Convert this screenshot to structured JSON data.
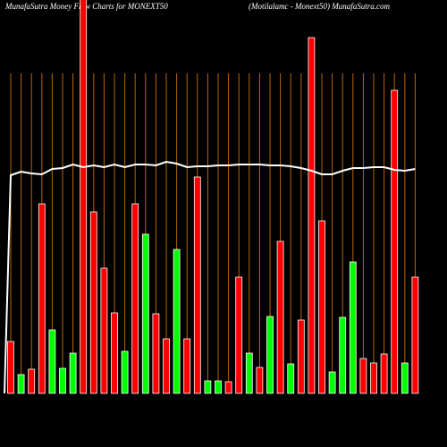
{
  "chart_data": {
    "type": "bar",
    "title": "MunafaSutra  Money Flow  Charts for MONEXT50",
    "subtitle": "(Motilalamc -  Monext50) MunafaSutra.com",
    "series": [
      {
        "name": "money-flow",
        "colors": [
          "red",
          "green",
          "red",
          "red",
          "green",
          "green",
          "green",
          "red",
          "red",
          "red",
          "red",
          "green",
          "red",
          "green",
          "red",
          "red",
          "green",
          "red",
          "red",
          "green",
          "green",
          "red",
          "red",
          "green",
          "red",
          "green",
          "red",
          "green",
          "red",
          "red",
          "red",
          "green",
          "green",
          "green",
          "red",
          "red",
          "red",
          "red",
          "green",
          "red"
        ],
        "values": [
          58,
          21,
          27,
          212,
          71,
          28,
          45,
          460,
          203,
          140,
          90,
          47,
          212,
          178,
          89,
          61,
          161,
          61,
          242,
          14,
          14,
          13,
          130,
          45,
          29,
          86,
          170,
          33,
          82,
          398,
          193,
          24,
          85,
          147,
          39,
          34,
          44,
          339,
          34,
          130
        ]
      },
      {
        "name": "trend",
        "color": "#ffffff",
        "values": [
          244,
          248,
          246,
          245,
          251,
          252,
          256,
          253,
          255,
          253,
          256,
          253,
          256,
          256,
          255,
          259,
          257,
          253,
          254,
          254,
          255,
          255,
          256,
          256,
          256,
          255,
          255,
          254,
          252,
          249,
          245,
          245,
          249,
          252,
          252,
          253,
          253,
          250,
          249,
          251
        ]
      }
    ]
  }
}
